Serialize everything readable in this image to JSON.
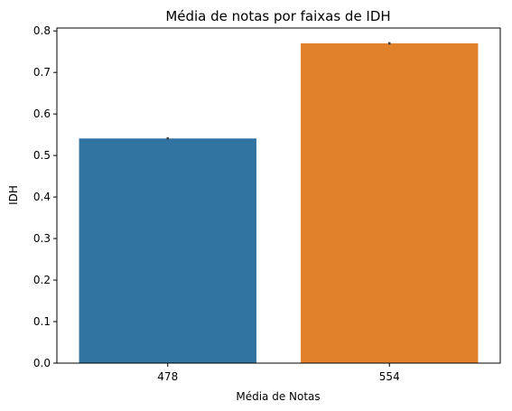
{
  "chart_data": {
    "type": "bar",
    "title": "Média de notas por faixas de IDH",
    "xlabel": "Média de Notas",
    "ylabel": "IDH",
    "categories": [
      "478",
      "554"
    ],
    "values": [
      0.541,
      0.77
    ],
    "error_bars": [
      [
        0.538,
        0.544
      ],
      [
        0.767,
        0.773
      ]
    ],
    "colors": [
      "#3274a1",
      "#e1812c"
    ],
    "error_color": "#424242",
    "ylim": [
      0,
      0.807
    ],
    "yticks": [
      0.0,
      0.1,
      0.2,
      0.3,
      0.4,
      0.5,
      0.6,
      0.7,
      0.8
    ],
    "ytick_labels": [
      "0.0",
      "0.1",
      "0.2",
      "0.3",
      "0.4",
      "0.5",
      "0.6",
      "0.7",
      "0.8"
    ],
    "grid": false,
    "legend": false
  }
}
